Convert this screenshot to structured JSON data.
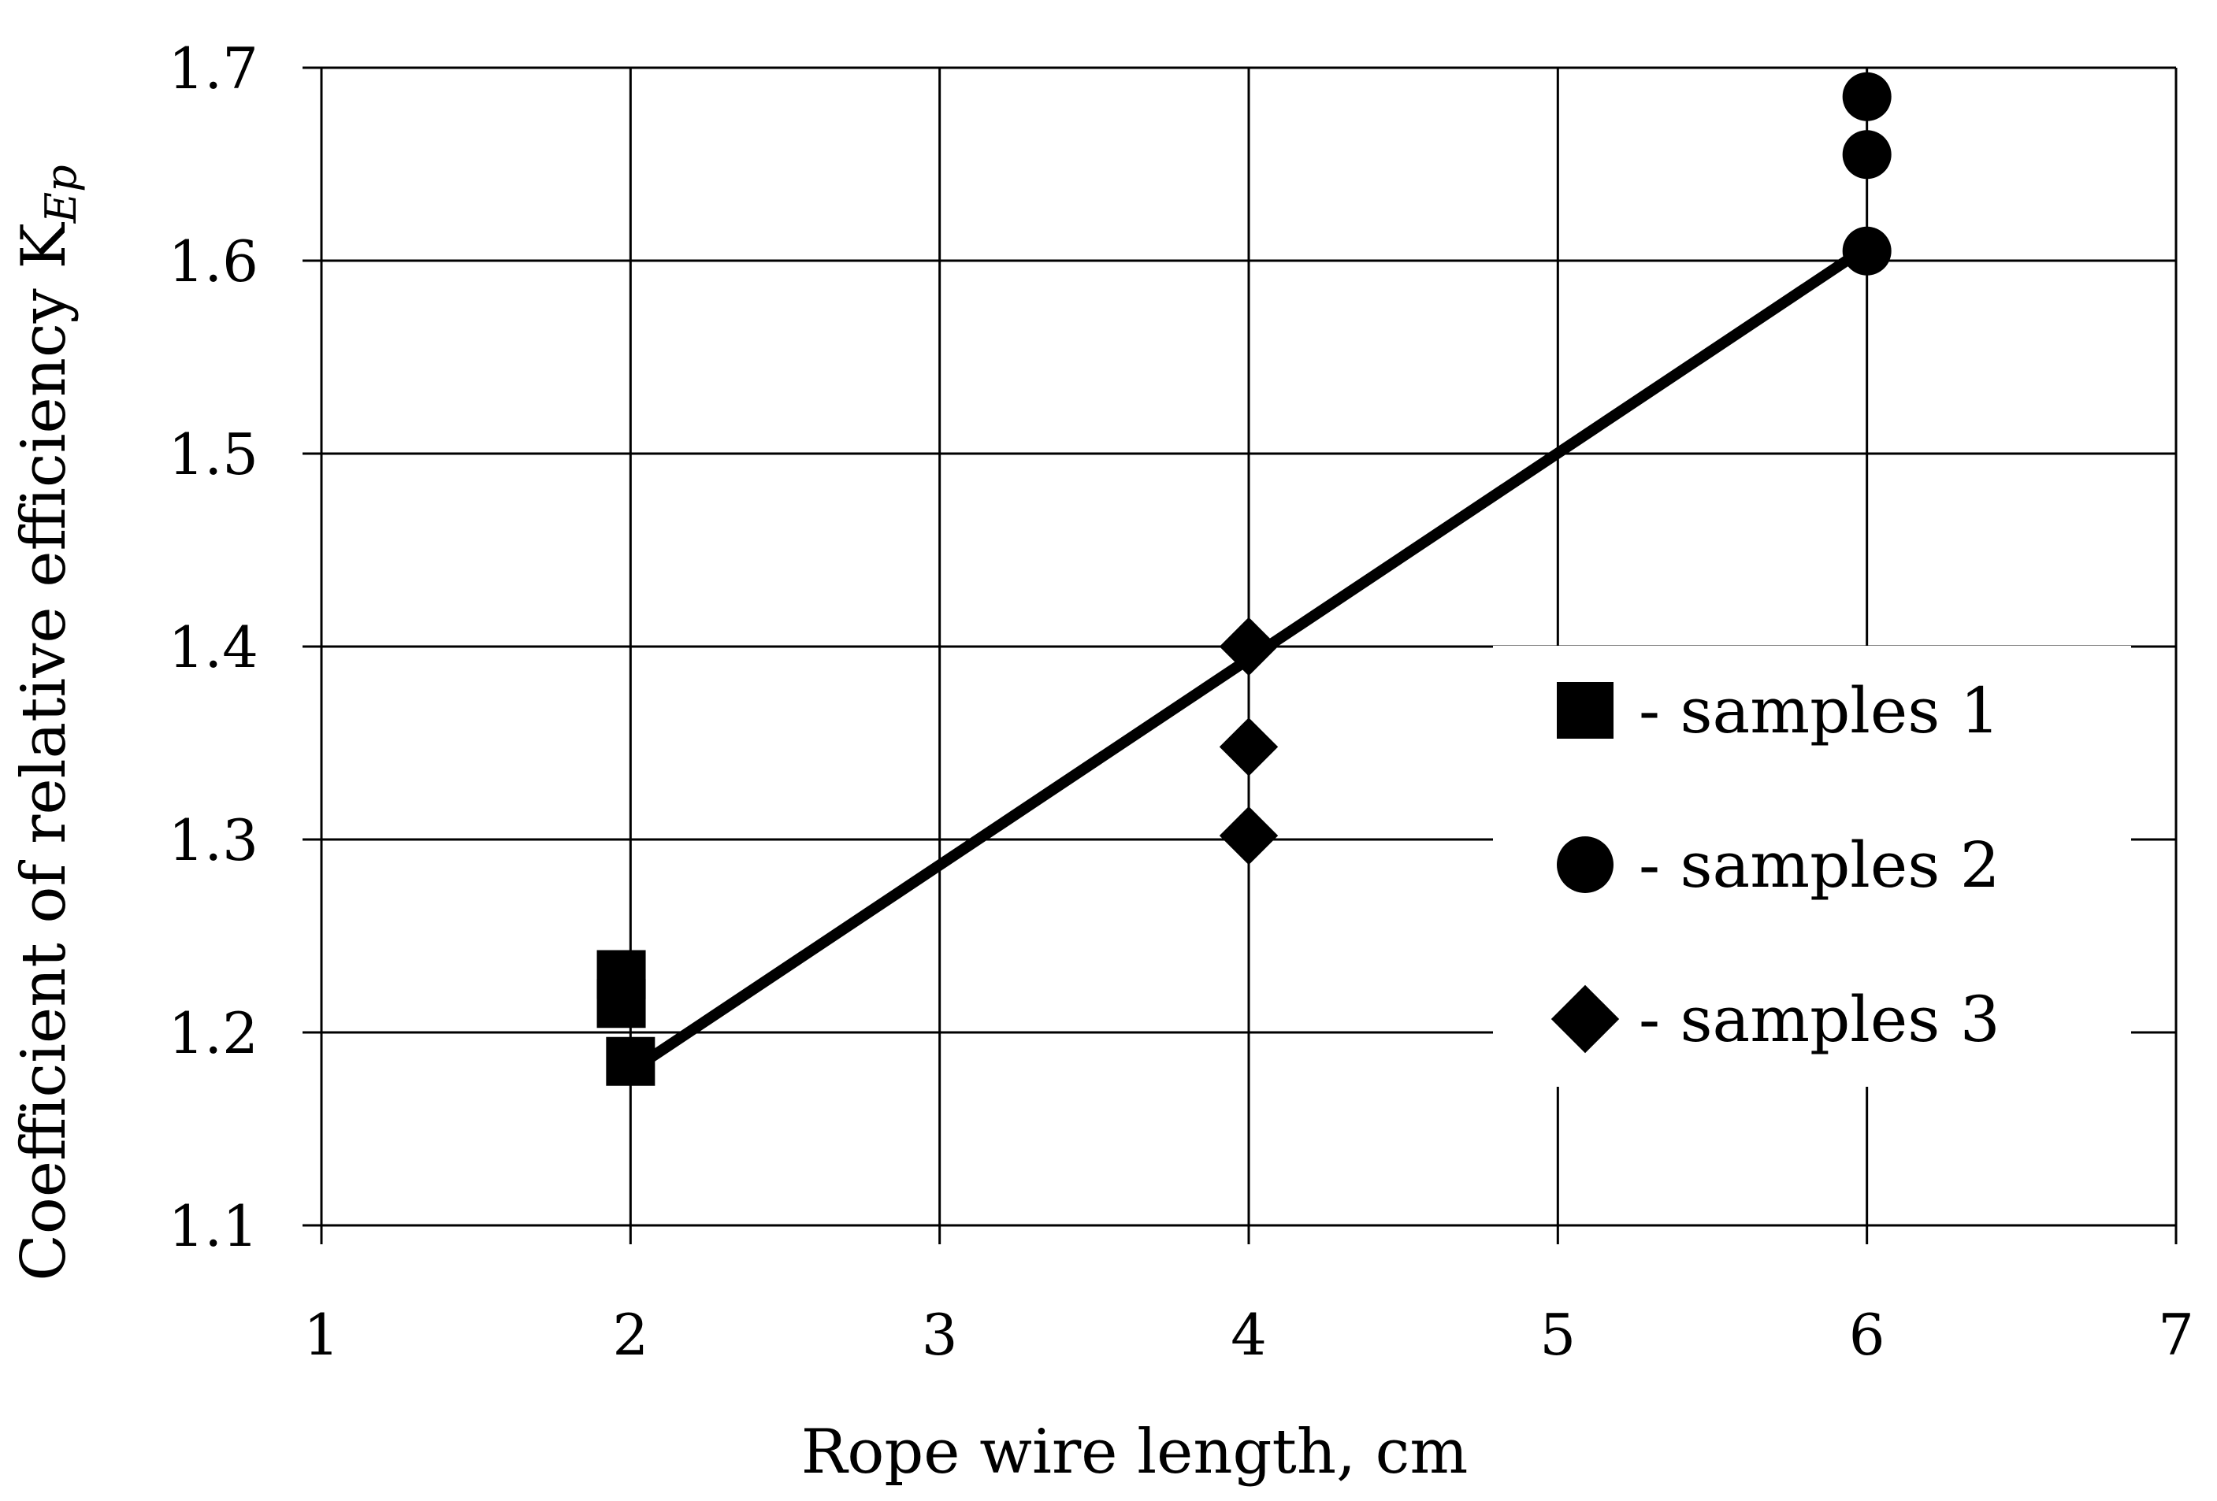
{
  "chart_data": {
    "type": "scatter",
    "title": "",
    "xlabel": "Rope wire length, cm",
    "ylabel": "Coefficient of relative efficiency K",
    "ylabel_subscript": "Ep",
    "xlim": [
      1,
      7
    ],
    "ylim": [
      1.1,
      1.7
    ],
    "x_ticks": [
      1,
      2,
      3,
      4,
      5,
      6,
      7
    ],
    "y_ticks": [
      "1.1",
      "1.2",
      "1.3",
      "1.4",
      "1.5",
      "1.6",
      "1.7"
    ],
    "grid": true,
    "legend_position": "right",
    "series": [
      {
        "name": "- samples 1",
        "marker": "square",
        "points": [
          [
            1.97,
            1.23
          ],
          [
            1.97,
            1.215
          ],
          [
            2.0,
            1.185
          ]
        ]
      },
      {
        "name": "- samples 2",
        "marker": "circle",
        "points": [
          [
            6.0,
            1.685
          ],
          [
            6.0,
            1.655
          ],
          [
            6.0,
            1.605
          ]
        ]
      },
      {
        "name": "- samples 3",
        "marker": "diamond",
        "points": [
          [
            4.0,
            1.4
          ],
          [
            4.0,
            1.348
          ],
          [
            4.0,
            1.302
          ]
        ]
      }
    ],
    "trendline": {
      "x": [
        2,
        6
      ],
      "y": [
        1.18,
        1.607
      ]
    },
    "colors": {
      "markers": "#000000",
      "line": "#000000",
      "grid": "#000000"
    }
  }
}
